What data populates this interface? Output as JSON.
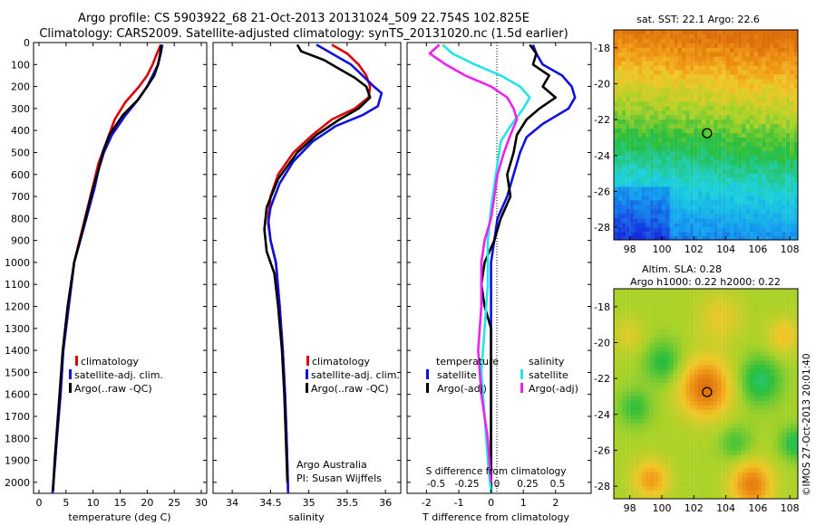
{
  "header": {
    "line1": "Argo profile: CS 5903922_68 21-Oct-2013 20131024_509 22.754S 102.825E",
    "line2": "Climatology: CARS2009. Satellite-adjusted climatology: synTS_20131020.nc (1.5d earlier)"
  },
  "colors": {
    "climatology": "#dd0000",
    "satellite": "#1111dd",
    "argo": "#000000",
    "sal_satellite": "#22e5e5",
    "sal_argo": "#ee22ee"
  },
  "chart_data": [
    {
      "type": "line",
      "name": "temperature-profile",
      "xlabel": "temperature (deg C)",
      "xlim": [
        -1,
        31
      ],
      "ylim": [
        2050,
        0
      ],
      "xticks": [
        0,
        5,
        10,
        15,
        20,
        25,
        30
      ],
      "yticks": [
        0,
        100,
        200,
        300,
        400,
        500,
        600,
        700,
        800,
        900,
        1000,
        1100,
        1200,
        1300,
        1400,
        1500,
        1600,
        1700,
        1800,
        1900,
        2000
      ],
      "legend": [
        "climatology",
        "satellite-adj. clim.",
        "Argo(..raw -QC)"
      ],
      "series": [
        {
          "name": "climatology",
          "color": "#dd0000",
          "points": [
            [
              22.5,
              10
            ],
            [
              21.8,
              50
            ],
            [
              21,
              100
            ],
            [
              20,
              150
            ],
            [
              18.5,
              200
            ],
            [
              16,
              270
            ],
            [
              14,
              350
            ],
            [
              12.5,
              450
            ],
            [
              11,
              550
            ],
            [
              10,
              650
            ],
            [
              9,
              750
            ],
            [
              8,
              850
            ],
            [
              6.5,
              1000
            ],
            [
              5.5,
              1200
            ],
            [
              4.5,
              1400
            ],
            [
              4,
              1600
            ],
            [
              3.3,
              1800
            ],
            [
              3,
              1900
            ],
            [
              2.5,
              2050
            ]
          ]
        },
        {
          "name": "satellite-adj. clim.",
          "color": "#1111dd",
          "points": [
            [
              22.8,
              10
            ],
            [
              22.5,
              50
            ],
            [
              22,
              100
            ],
            [
              21,
              150
            ],
            [
              20,
              200
            ],
            [
              18,
              270
            ],
            [
              16,
              330
            ],
            [
              13.5,
              420
            ],
            [
              12,
              500
            ],
            [
              11,
              580
            ],
            [
              10.3,
              660
            ],
            [
              9.3,
              750
            ],
            [
              8.2,
              850
            ],
            [
              6.5,
              1000
            ],
            [
              5.5,
              1200
            ],
            [
              4.5,
              1400
            ],
            [
              4,
              1600
            ],
            [
              3.3,
              1800
            ],
            [
              3,
              1900
            ],
            [
              2.5,
              2050
            ]
          ]
        },
        {
          "name": "Argo(..raw -QC)",
          "color": "#000000",
          "points": [
            [
              22.6,
              10
            ],
            [
              22.4,
              50
            ],
            [
              22,
              100
            ],
            [
              21.3,
              150
            ],
            [
              20,
              200
            ],
            [
              18.3,
              260
            ],
            [
              15.5,
              330
            ],
            [
              13,
              420
            ],
            [
              11.8,
              500
            ],
            [
              11,
              580
            ],
            [
              10,
              660
            ],
            [
              9,
              760
            ],
            [
              7.8,
              880
            ],
            [
              6.5,
              1000
            ],
            [
              5.3,
              1200
            ],
            [
              4.4,
              1400
            ],
            [
              3.8,
              1600
            ],
            [
              3.2,
              1800
            ],
            [
              2.9,
              1900
            ],
            [
              2.6,
              2040
            ]
          ]
        }
      ]
    },
    {
      "type": "line",
      "name": "salinity-profile",
      "xlabel": "salinity",
      "xlim": [
        33.75,
        36.2
      ],
      "ylim": [
        2050,
        0
      ],
      "xticks": [
        34,
        34.5,
        35,
        35.5,
        36
      ],
      "legend": [
        "climatology",
        "satellite-adj. clim.",
        "Argo(..raw -QC)"
      ],
      "annotation": [
        "Argo Australia",
        "PI: Susan Wijffels"
      ],
      "series": [
        {
          "name": "climatology",
          "color": "#dd0000",
          "points": [
            [
              35.3,
              10
            ],
            [
              35.5,
              50
            ],
            [
              35.65,
              100
            ],
            [
              35.75,
              150
            ],
            [
              35.8,
              200
            ],
            [
              35.78,
              250
            ],
            [
              35.6,
              300
            ],
            [
              35.3,
              350
            ],
            [
              35.05,
              420
            ],
            [
              34.8,
              500
            ],
            [
              34.6,
              600
            ],
            [
              34.5,
              700
            ],
            [
              34.47,
              800
            ],
            [
              34.5,
              900
            ],
            [
              34.57,
              1000
            ],
            [
              34.62,
              1200
            ],
            [
              34.66,
              1400
            ],
            [
              34.69,
              1600
            ],
            [
              34.71,
              1800
            ],
            [
              34.73,
              2050
            ]
          ]
        },
        {
          "name": "satellite-adj. clim.",
          "color": "#1111dd",
          "points": [
            [
              35.1,
              10
            ],
            [
              35.3,
              50
            ],
            [
              35.55,
              100
            ],
            [
              35.7,
              150
            ],
            [
              35.85,
              200
            ],
            [
              35.95,
              230
            ],
            [
              35.9,
              290
            ],
            [
              35.7,
              330
            ],
            [
              35.35,
              380
            ],
            [
              35.05,
              450
            ],
            [
              34.8,
              540
            ],
            [
              34.62,
              640
            ],
            [
              34.5,
              750
            ],
            [
              34.47,
              820
            ],
            [
              34.5,
              900
            ],
            [
              34.57,
              1000
            ],
            [
              34.62,
              1200
            ],
            [
              34.66,
              1400
            ],
            [
              34.69,
              1600
            ],
            [
              34.71,
              1800
            ],
            [
              34.73,
              2050
            ]
          ]
        },
        {
          "name": "Argo(..raw -QC)",
          "color": "#000000",
          "points": [
            [
              34.85,
              10
            ],
            [
              34.9,
              40
            ],
            [
              35.2,
              80
            ],
            [
              35.4,
              120
            ],
            [
              35.6,
              160
            ],
            [
              35.75,
              200
            ],
            [
              35.8,
              250
            ],
            [
              35.65,
              300
            ],
            [
              35.4,
              350
            ],
            [
              35.1,
              420
            ],
            [
              34.85,
              500
            ],
            [
              34.6,
              620
            ],
            [
              34.45,
              750
            ],
            [
              34.42,
              850
            ],
            [
              34.45,
              950
            ],
            [
              34.55,
              1050
            ],
            [
              34.6,
              1200
            ],
            [
              34.65,
              1400
            ],
            [
              34.68,
              1600
            ],
            [
              34.7,
              1800
            ],
            [
              34.72,
              2000
            ]
          ]
        }
      ]
    },
    {
      "type": "line",
      "name": "difference-profile",
      "xlabel": "T difference from climatology",
      "toplabel": "S difference from climatology",
      "xlim": [
        -2.6,
        3.1
      ],
      "ylim": [
        2050,
        0
      ],
      "xticks": [
        -2,
        -1,
        0,
        1,
        2
      ],
      "s_ticks": [
        "-0.5",
        "-0.25",
        "0",
        "0.25",
        "0.5"
      ],
      "legend_titles": [
        "temperature",
        "salinity"
      ],
      "legend_t": [
        "satellite",
        "Argo(-adj)"
      ],
      "legend_s": [
        "satellite",
        "Argo(-adj)"
      ],
      "series": [
        {
          "name": "temperature satellite",
          "color": "#1111dd",
          "points": [
            [
              1.3,
              10
            ],
            [
              1.4,
              50
            ],
            [
              1.6,
              100
            ],
            [
              2.2,
              150
            ],
            [
              2.5,
              200
            ],
            [
              2.6,
              250
            ],
            [
              2.4,
              300
            ],
            [
              1.6,
              370
            ],
            [
              1.1,
              430
            ],
            [
              0.9,
              500
            ],
            [
              0.7,
              600
            ],
            [
              0.5,
              700
            ],
            [
              0.2,
              800
            ],
            [
              0.1,
              900
            ],
            [
              0,
              1000
            ],
            [
              0,
              1500
            ],
            [
              0,
              2050
            ]
          ]
        },
        {
          "name": "temperature Argo(-adj)",
          "color": "#000000",
          "points": [
            [
              1.2,
              10
            ],
            [
              1.4,
              50
            ],
            [
              1.3,
              100
            ],
            [
              1.8,
              150
            ],
            [
              1.6,
              200
            ],
            [
              2,
              250
            ],
            [
              1.5,
              300
            ],
            [
              1.1,
              350
            ],
            [
              0.8,
              420
            ],
            [
              0.7,
              500
            ],
            [
              0.5,
              600
            ],
            [
              0.6,
              700
            ],
            [
              0.3,
              800
            ],
            [
              0.1,
              900
            ],
            [
              -0.2,
              1000
            ],
            [
              -0.3,
              1100
            ],
            [
              -0.2,
              1200
            ],
            [
              0,
              1300
            ],
            [
              0,
              1500
            ],
            [
              0,
              2050
            ]
          ]
        },
        {
          "name": "salinity satellite",
          "color": "#22e5e5",
          "points": [
            [
              -1.5,
              10
            ],
            [
              -1.2,
              50
            ],
            [
              -0.5,
              100
            ],
            [
              0.3,
              150
            ],
            [
              0.9,
              200
            ],
            [
              1.2,
              250
            ],
            [
              1,
              300
            ],
            [
              0.6,
              380
            ],
            [
              0.3,
              450
            ],
            [
              0.2,
              550
            ],
            [
              0.1,
              650
            ],
            [
              0,
              750
            ],
            [
              -0.1,
              900
            ],
            [
              -0.1,
              1100
            ],
            [
              -0.2,
              1300
            ],
            [
              -0.3,
              1500
            ],
            [
              -0.2,
              1700
            ],
            [
              -0.1,
              1900
            ],
            [
              0,
              2050
            ]
          ]
        },
        {
          "name": "salinity Argo(-adj)",
          "color": "#ee22ee",
          "points": [
            [
              -1.6,
              10
            ],
            [
              -1.9,
              50
            ],
            [
              -1.4,
              100
            ],
            [
              -0.8,
              150
            ],
            [
              0,
              200
            ],
            [
              0.5,
              250
            ],
            [
              0.7,
              300
            ],
            [
              0.8,
              350
            ],
            [
              0.6,
              420
            ],
            [
              0.4,
              500
            ],
            [
              0.2,
              600
            ],
            [
              0.1,
              700
            ],
            [
              0,
              800
            ],
            [
              -0.2,
              900
            ],
            [
              -0.3,
              1000
            ],
            [
              -0.3,
              1200
            ],
            [
              -0.4,
              1400
            ],
            [
              -0.3,
              1600
            ],
            [
              -0.1,
              1800
            ],
            [
              0,
              2000
            ]
          ]
        }
      ]
    },
    {
      "type": "heatmap",
      "name": "sst-map",
      "title": "sat. SST: 22.1 Argo: 22.6",
      "xlim": [
        97,
        108.5
      ],
      "ylim": [
        -28.7,
        -17
      ],
      "xticks": [
        98,
        100,
        102,
        104,
        106,
        108
      ],
      "yticks": [
        -18,
        -20,
        -22,
        -24,
        -26,
        -28
      ],
      "marker": [
        102.825,
        -22.754
      ]
    },
    {
      "type": "heatmap",
      "name": "sla-map",
      "title": [
        "Altim. SLA: 0.28",
        "Argo h1000: 0.22 h2000: 0.22"
      ],
      "xlim": [
        97,
        108.5
      ],
      "ylim": [
        -28.7,
        -17
      ],
      "xticks": [
        98,
        100,
        102,
        104,
        106,
        108
      ],
      "yticks": [
        -18,
        -20,
        -22,
        -24,
        -26,
        -28
      ],
      "marker": [
        102.825,
        -22.754
      ]
    }
  ],
  "footer": {
    "side_label": "©IMOS 27-Oct-2013 20:01:40"
  }
}
